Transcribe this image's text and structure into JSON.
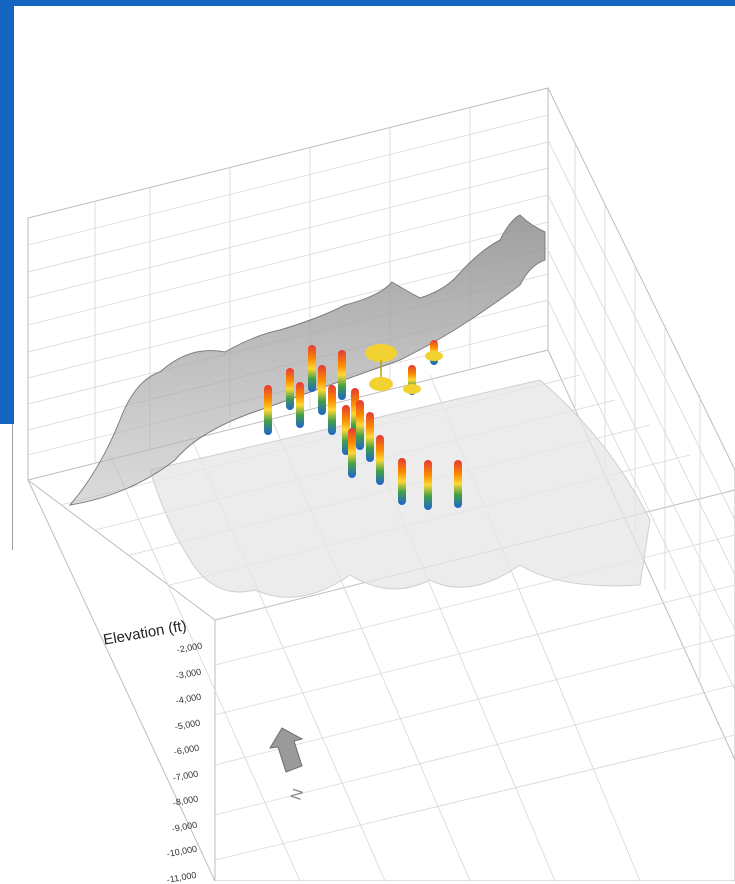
{
  "axis": {
    "title": "Elevation (ft)",
    "ticks": [
      "-2,000",
      "-3,000",
      "-4,000",
      "-5,000",
      "-6,000",
      "-7,000",
      "-8,000",
      "-9,000",
      "-10,000",
      "-11,000"
    ]
  },
  "compass": {
    "label": "N",
    "icon": "north-arrow-icon"
  },
  "colors": {
    "frame_accent": "#1565c0",
    "grid": "#c8c8c8",
    "surface_top": "#8f8f8f",
    "surface_bottom": "#dcdcdc",
    "well_top": "#e53935",
    "well_mid": "#fdd835",
    "well_low": "#43a047",
    "well_bottom": "#1e63d0",
    "marker": "#f2d230"
  }
}
